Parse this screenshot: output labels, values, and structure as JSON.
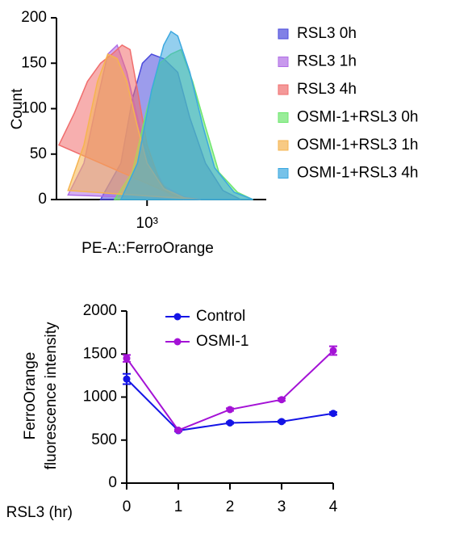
{
  "chart_data": [
    {
      "type": "area",
      "x_label": "PE-A::FerroOrange",
      "y_label": "Count",
      "xscale": "log",
      "xlim": [
        370,
        3700
      ],
      "xticks": [
        {
          "value": 1000,
          "label": "10³"
        }
      ],
      "ylim": [
        0,
        200
      ],
      "yticks": [
        0,
        50,
        100,
        150,
        200
      ],
      "legend": "right",
      "series": [
        {
          "name": "RSL3 0h",
          "color": "#4b4bdc",
          "x": [
            600,
            750,
            850,
            950,
            1050,
            1200,
            1400,
            1600,
            1900,
            2300,
            2800
          ],
          "values": [
            0,
            40,
            110,
            150,
            160,
            155,
            140,
            90,
            40,
            10,
            0
          ]
        },
        {
          "name": "RSL3 1h",
          "color": "#b06ee6",
          "x": [
            420,
            500,
            580,
            650,
            720,
            800,
            900,
            1000,
            1200,
            1500,
            1800
          ],
          "values": [
            5,
            40,
            110,
            160,
            170,
            140,
            90,
            50,
            15,
            3,
            0
          ]
        },
        {
          "name": "RSL3 4h",
          "color": "#f06e6e",
          "x": [
            380,
            450,
            520,
            600,
            680,
            760,
            830,
            900,
            1000,
            1150,
            1300,
            1500
          ],
          "values": [
            60,
            95,
            130,
            150,
            160,
            170,
            165,
            120,
            60,
            20,
            5,
            0
          ]
        },
        {
          "name": "OSMI-1+RSL3 0h",
          "color": "#6ee66e",
          "x": [
            700,
            850,
            1000,
            1150,
            1300,
            1450,
            1650,
            1900,
            2200,
            2700,
            3200
          ],
          "values": [
            0,
            30,
            100,
            150,
            160,
            165,
            130,
            80,
            30,
            8,
            0
          ]
        },
        {
          "name": "OSMI-1+RSL3 1h",
          "color": "#f5b450",
          "x": [
            420,
            500,
            580,
            650,
            720,
            800,
            900,
            1000,
            1200,
            1500,
            1800
          ],
          "values": [
            10,
            60,
            130,
            160,
            155,
            130,
            80,
            40,
            12,
            2,
            0
          ]
        },
        {
          "name": "OSMI-1+RSL3 4h",
          "color": "#3ca8e0",
          "x": [
            750,
            900,
            1050,
            1200,
            1300,
            1400,
            1600,
            1850,
            2100,
            2600,
            3200
          ],
          "values": [
            0,
            40,
            120,
            170,
            185,
            180,
            140,
            80,
            35,
            8,
            0
          ]
        }
      ]
    },
    {
      "type": "line",
      "x_label": "RSL3 (hr)",
      "y_label": [
        "FerroOrange",
        "fluorescence intensity"
      ],
      "xlim": [
        0,
        4
      ],
      "xticks": [
        0,
        1,
        2,
        3,
        4
      ],
      "ylim": [
        0,
        2000
      ],
      "yticks": [
        0,
        500,
        1000,
        1500,
        2000
      ],
      "legend": "top-left",
      "x": [
        0,
        1,
        2,
        3,
        4
      ],
      "series": [
        {
          "name": "Control",
          "color": "#1414e6",
          "values": [
            1210,
            610,
            700,
            715,
            810
          ],
          "errors": [
            60,
            10,
            10,
            10,
            15
          ]
        },
        {
          "name": "OSMI-1",
          "color": "#a412d6",
          "values": [
            1450,
            615,
            855,
            970,
            1540
          ],
          "errors": [
            40,
            10,
            15,
            15,
            50
          ]
        }
      ]
    }
  ]
}
